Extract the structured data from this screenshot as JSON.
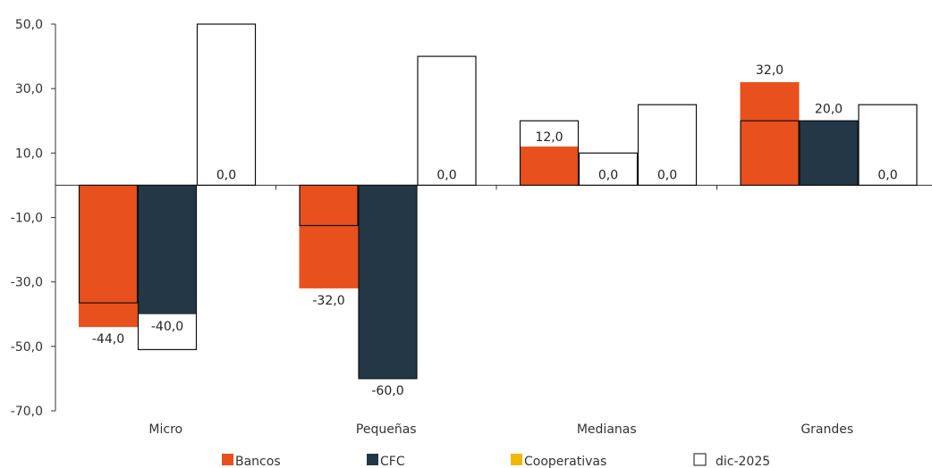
{
  "chart_data": {
    "type": "bar",
    "categories": [
      "Micro",
      "Pequeñas",
      "Medianas",
      "Grandes"
    ],
    "ylim": [
      -70,
      50
    ],
    "yticks": [
      50,
      30,
      10,
      -10,
      -30,
      -50,
      -70
    ],
    "ytick_labels": [
      "50,0",
      "30,0",
      "10,0",
      "-10,0",
      "-30,0",
      "-50,0",
      "-70,0"
    ],
    "grid": false,
    "legend_position": "bottom",
    "series": [
      {
        "name": "Bancos",
        "color": "#E8501E",
        "values": [
          -44,
          -32,
          12,
          32
        ],
        "labels": [
          "-44,0",
          "-32,0",
          "12,0",
          "32,0"
        ]
      },
      {
        "name": "CFC",
        "color": "#233746",
        "values": [
          -40,
          -60,
          0,
          20
        ],
        "labels": [
          "-40,0",
          "-60,0",
          "0,0",
          "20,0"
        ]
      },
      {
        "name": "Cooperativas",
        "color": "#F2B705",
        "values": [
          0,
          0,
          0,
          0
        ],
        "labels": [
          "0,0",
          "0,0",
          "0,0",
          "0,0"
        ]
      }
    ],
    "reference": {
      "name": "dic-2025",
      "style": "outline",
      "values": [
        [
          -36.5,
          -51,
          50
        ],
        [
          -12.5,
          -60,
          40
        ],
        [
          20,
          10,
          25
        ],
        [
          20,
          20,
          25
        ]
      ]
    }
  }
}
